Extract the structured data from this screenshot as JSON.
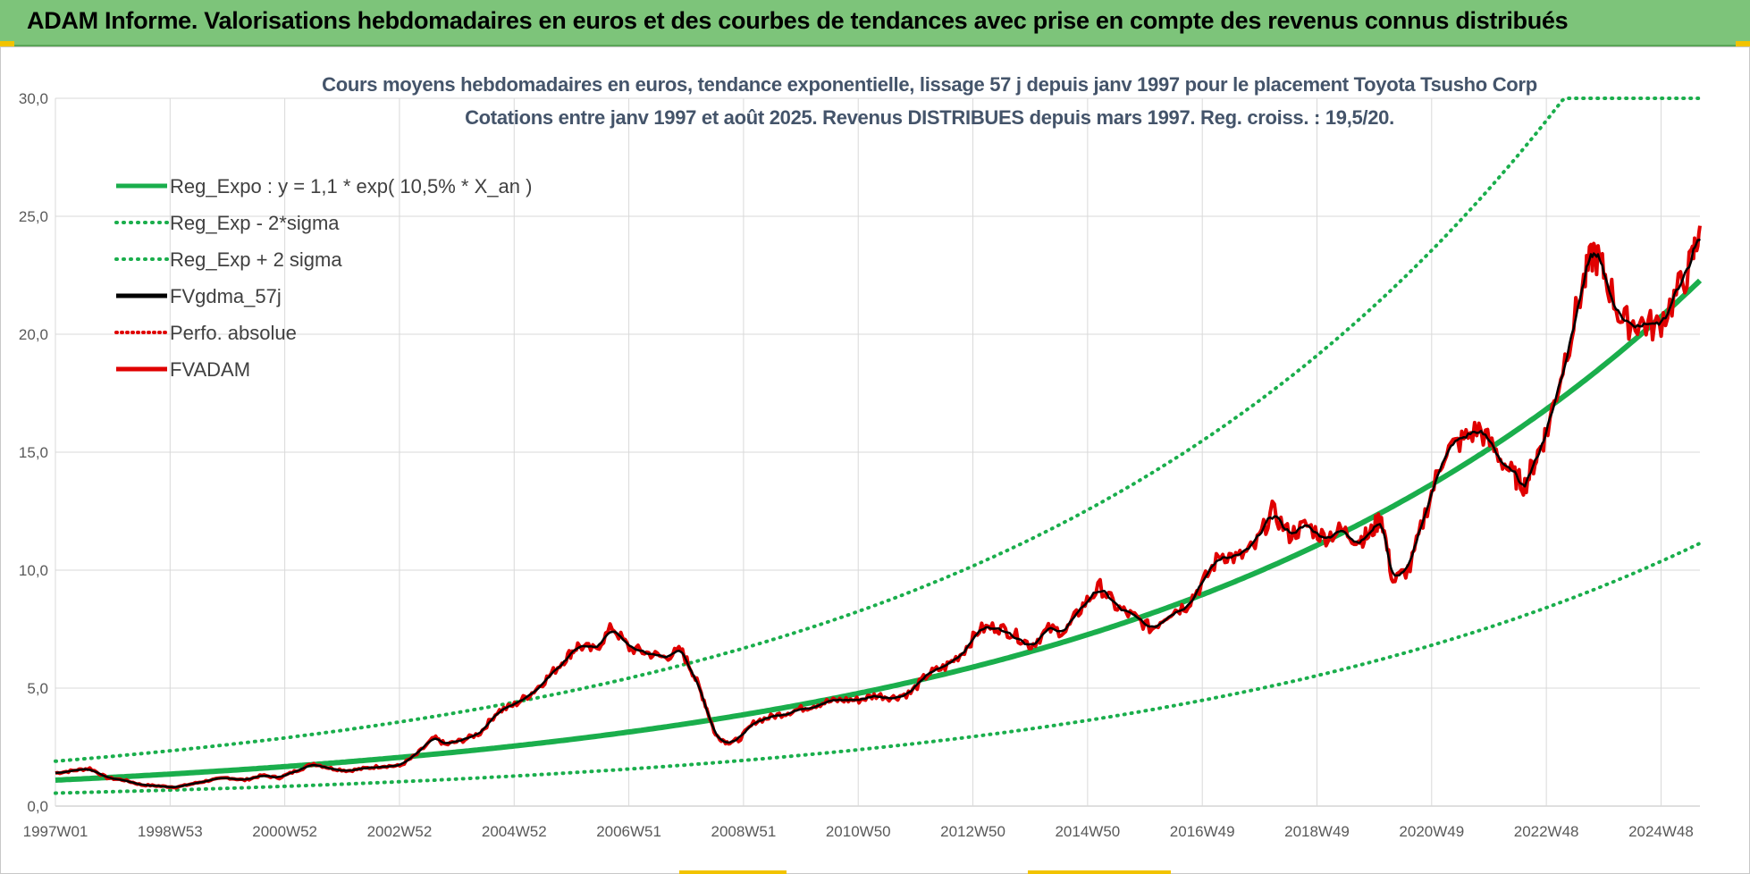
{
  "header": {
    "banner_title": "ADAM Informe. Valorisations hebdomadaires en euros et des courbes de tendances avec prise en compte des revenus connus distribués"
  },
  "chart_data": {
    "type": "line",
    "title": "Cours moyens hebdomadaires en euros, tendance exponentielle, lissage 57 j depuis janv 1997 pour le placement Toyota Tsusho Corp",
    "subtitle": "Cotations entre janv 1997 et août 2025. Revenus DISTRIBUES depuis mars 1997. Reg. croiss. : 19,5/20.",
    "ylim": [
      0,
      30
    ],
    "y_ticks": [
      "0,0",
      "5,0",
      "10,0",
      "15,0",
      "20,0",
      "25,0",
      "30,0"
    ],
    "x_ticks": [
      "1997W01",
      "1998W53",
      "2000W52",
      "2002W52",
      "2004W52",
      "2006W51",
      "2008W51",
      "2010W50",
      "2012W50",
      "2014W50",
      "2016W49",
      "2018W49",
      "2020W49",
      "2022W48",
      "2024W48"
    ],
    "x_range_years": [
      1997.0,
      2025.65
    ],
    "grid": true,
    "legend_position": "top-left",
    "series": [
      {
        "name": "Reg_Expo : y = 1,1 * exp( 10,5% *  X_an )",
        "color": "#1aae4c",
        "style": "solid",
        "model": {
          "a": 1.1,
          "r": 0.105
        }
      },
      {
        "name": "Reg_Exp - 2*sigma",
        "color": "#1aae4c",
        "style": "dotted",
        "model": {
          "a": 0.55,
          "r": 0.105
        }
      },
      {
        "name": "Reg_Exp + 2 sigma",
        "color": "#1aae4c",
        "style": "dotted",
        "model": {
          "a": 1.9,
          "r": 0.105,
          "cap": 30
        }
      },
      {
        "name": "FVgdma_57j",
        "color": "#000000",
        "style": "solid"
      },
      {
        "name": "Perfo. absolue",
        "color": "#e00000",
        "style": "dotted"
      },
      {
        "name": "FVADAM",
        "color": "#e00000",
        "style": "solid",
        "x": [
          1997.0,
          1997.3,
          1997.6,
          1997.9,
          1998.2,
          1998.5,
          1998.8,
          1999.1,
          1999.4,
          1999.7,
          2000.0,
          2000.3,
          2000.6,
          2000.9,
          2001.2,
          2001.5,
          2001.8,
          2002.1,
          2002.4,
          2002.7,
          2003.0,
          2003.3,
          2003.6,
          2003.8,
          2004.1,
          2004.4,
          2004.7,
          2005.0,
          2005.3,
          2005.6,
          2005.9,
          2006.1,
          2006.4,
          2006.7,
          2007.0,
          2007.3,
          2007.6,
          2007.9,
          2008.1,
          2008.3,
          2008.5,
          2008.7,
          2008.9,
          2009.2,
          2009.5,
          2009.8,
          2010.1,
          2010.4,
          2010.7,
          2011.0,
          2011.3,
          2011.6,
          2011.9,
          2012.2,
          2012.5,
          2012.8,
          2013.1,
          2013.4,
          2013.7,
          2014.0,
          2014.3,
          2014.6,
          2014.9,
          2015.2,
          2015.5,
          2015.8,
          2016.1,
          2016.4,
          2016.7,
          2017.0,
          2017.3,
          2017.6,
          2017.9,
          2018.2,
          2018.5,
          2018.8,
          2019.1,
          2019.4,
          2019.7,
          2019.9,
          2020.1,
          2020.3,
          2020.6,
          2020.9,
          2021.2,
          2021.5,
          2021.8,
          2022.1,
          2022.4,
          2022.6,
          2022.8,
          2023.0,
          2023.3,
          2023.6,
          2023.8,
          2024.0,
          2024.3,
          2024.6,
          2024.9,
          2025.2,
          2025.5,
          2025.65
        ],
        "y": [
          1.4,
          1.5,
          1.6,
          1.2,
          1.1,
          0.9,
          0.85,
          0.8,
          0.95,
          1.1,
          1.2,
          1.1,
          1.3,
          1.2,
          1.5,
          1.8,
          1.6,
          1.5,
          1.6,
          1.7,
          1.7,
          2.2,
          2.9,
          2.6,
          2.8,
          3.1,
          4.0,
          4.3,
          4.8,
          5.5,
          6.3,
          6.8,
          6.6,
          7.6,
          6.7,
          6.5,
          6.3,
          6.6,
          5.7,
          4.5,
          3.0,
          2.7,
          2.8,
          3.6,
          3.8,
          4.0,
          4.2,
          4.4,
          4.5,
          4.5,
          4.7,
          4.6,
          4.8,
          5.6,
          5.9,
          6.5,
          7.5,
          7.6,
          7.3,
          6.8,
          7.5,
          7.4,
          8.5,
          9.3,
          8.4,
          8.0,
          7.5,
          8.2,
          8.5,
          9.5,
          10.7,
          10.5,
          11.0,
          12.5,
          11.5,
          11.9,
          11.4,
          11.7,
          11.3,
          11.5,
          12.3,
          9.5,
          10.1,
          12.7,
          15.0,
          15.5,
          16.0,
          15.0,
          14.0,
          13.6,
          14.8,
          16.0,
          19.0,
          22.0,
          23.5,
          22.5,
          20.5,
          20.5,
          20.3,
          21.5,
          23.0,
          24.6
        ]
      }
    ]
  }
}
